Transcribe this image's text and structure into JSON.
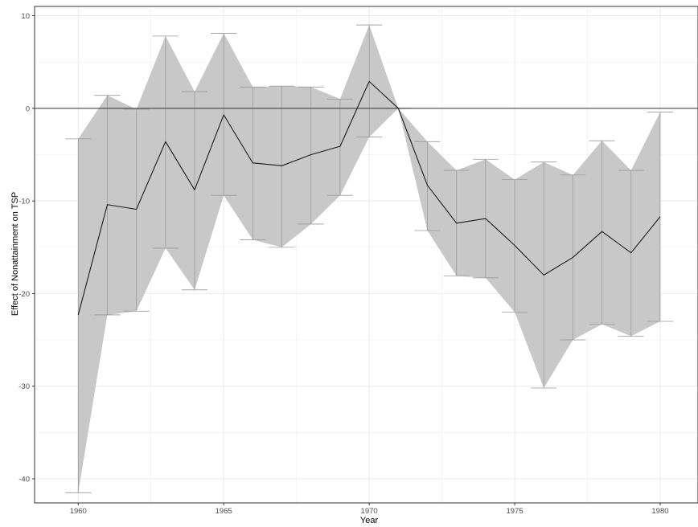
{
  "chart_data": {
    "type": "line",
    "title": "",
    "xlabel": "Year",
    "ylabel": "Effect of Nonattainment on TSP",
    "xlim": [
      1958.5,
      1981.3
    ],
    "ylim": [
      -42.6,
      11.0
    ],
    "x_ticks": [
      1960,
      1965,
      1970,
      1975,
      1980
    ],
    "y_ticks": [
      10,
      0,
      -10,
      -20,
      -30,
      -40
    ],
    "reference_line_y": 0,
    "grid": true,
    "legend": "none",
    "colors": {
      "line": "#1a1a1a",
      "band": "#c8c8c8",
      "error_bar": "#9a9a9a",
      "grid": "#ebebeb",
      "panel_border": "#333333",
      "reference_line": "#333333"
    },
    "series": [
      {
        "x": [
          1960,
          1961,
          1962,
          1963,
          1964,
          1965,
          1966,
          1967,
          1968,
          1969,
          1970,
          1971,
          1972,
          1973,
          1974,
          1975,
          1976,
          1977,
          1978,
          1979,
          1980
        ],
        "y": [
          -22.3,
          -10.4,
          -10.9,
          -3.6,
          -8.8,
          -0.7,
          -5.9,
          -6.2,
          -5.0,
          -4.1,
          2.9,
          0.0,
          -8.3,
          -12.4,
          -11.9,
          -14.8,
          -18.0,
          -16.1,
          -13.3,
          -15.6,
          -11.7
        ],
        "lower": [
          -41.5,
          -22.3,
          -21.9,
          -15.1,
          -19.6,
          -9.4,
          -14.2,
          -15.0,
          -12.5,
          -9.4,
          -3.1,
          0.0,
          -13.2,
          -18.1,
          -18.3,
          -22.0,
          -30.2,
          -25.0,
          -23.3,
          -24.6,
          -23.0
        ],
        "upper": [
          -3.3,
          1.4,
          -0.1,
          7.8,
          1.8,
          8.1,
          2.3,
          2.4,
          2.3,
          1.0,
          9.0,
          0.0,
          -3.6,
          -6.7,
          -5.5,
          -7.7,
          -5.8,
          -7.2,
          -3.5,
          -6.7,
          -0.4
        ]
      }
    ]
  }
}
